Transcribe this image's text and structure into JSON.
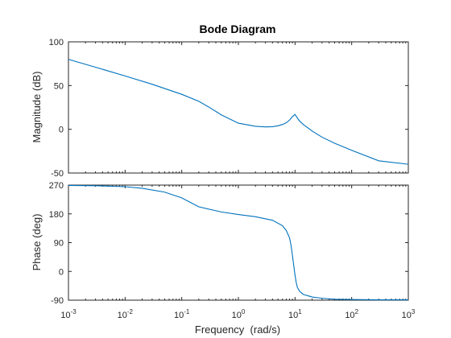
{
  "chart_data": {
    "type": "line",
    "title": "Bode Diagram",
    "xlabel": "Frequency  (rad/s)",
    "x_scale": "log",
    "xlim": [
      0.001,
      1000
    ],
    "x_ticks": [
      {
        "base": "10",
        "exp": "-3"
      },
      {
        "base": "10",
        "exp": "-2"
      },
      {
        "base": "10",
        "exp": "-1"
      },
      {
        "base": "10",
        "exp": "0"
      },
      {
        "base": "10",
        "exp": "1"
      },
      {
        "base": "10",
        "exp": "2"
      },
      {
        "base": "10",
        "exp": "3"
      }
    ],
    "line_color": "#0072bd",
    "panels": [
      {
        "ylabel": "Magnitude (dB)",
        "ylim": [
          -50,
          100
        ],
        "y_ticks": [
          "100",
          "50",
          "0",
          "-50"
        ],
        "y_tick_values": [
          100,
          50,
          0,
          -50
        ],
        "x": [
          0.001,
          0.003,
          0.01,
          0.03,
          0.1,
          0.2,
          0.3,
          0.5,
          1,
          2,
          3,
          4,
          5,
          6,
          7,
          8,
          9,
          10,
          11,
          12,
          14,
          20,
          30,
          50,
          100,
          300,
          1000
        ],
        "values": [
          80,
          71,
          61,
          51.5,
          40,
          32,
          25.5,
          16.5,
          7,
          3.4,
          2.7,
          3,
          4,
          5.5,
          7.5,
          10.5,
          14.5,
          17,
          13,
          9.5,
          5.5,
          -2,
          -9,
          -16,
          -24,
          -36,
          -40
        ]
      },
      {
        "ylabel": "Phase (deg)",
        "ylim": [
          -90,
          270
        ],
        "y_ticks": [
          "270",
          "180",
          "90",
          "0",
          "-90"
        ],
        "y_tick_values": [
          270,
          180,
          90,
          0,
          -90
        ],
        "x": [
          0.001,
          0.003,
          0.01,
          0.02,
          0.05,
          0.1,
          0.2,
          0.5,
          1,
          2,
          4,
          6,
          7,
          8,
          8.5,
          9,
          9.5,
          10,
          10.5,
          11,
          12,
          14,
          20,
          30,
          50,
          100,
          300,
          1000
        ],
        "values": [
          269,
          268,
          265,
          260,
          248,
          230,
          202,
          186,
          178,
          171,
          160,
          143,
          128,
          105,
          82,
          50,
          18,
          -12,
          -35,
          -50,
          -62,
          -72,
          -80,
          -84,
          -87,
          -88,
          -89,
          -89
        ]
      }
    ]
  }
}
